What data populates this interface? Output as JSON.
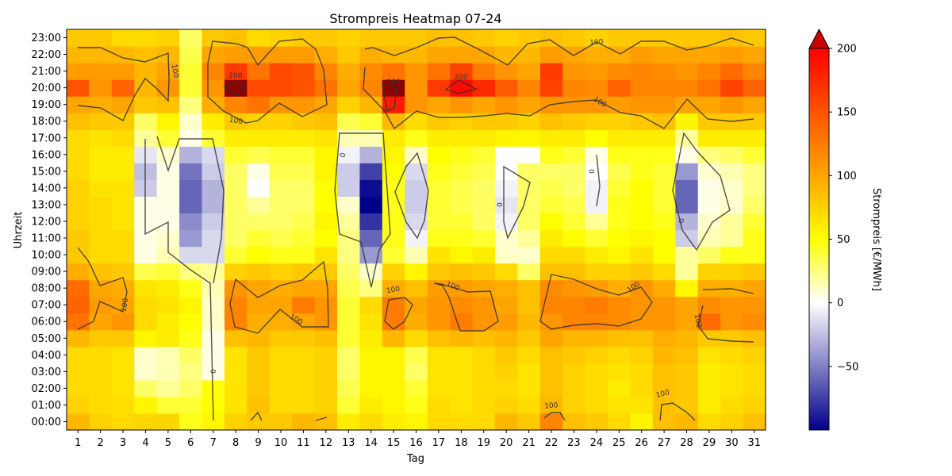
{
  "chart_data": {
    "type": "heatmap",
    "title": "Strompreis Heatmap 07-24",
    "xlabel": "Tag",
    "ylabel": "Uhrzeit",
    "x": [
      1,
      2,
      3,
      4,
      5,
      6,
      7,
      8,
      9,
      10,
      11,
      12,
      13,
      14,
      15,
      16,
      17,
      18,
      19,
      20,
      21,
      22,
      23,
      24,
      25,
      26,
      27,
      28,
      29,
      30,
      31
    ],
    "y": [
      "00:00",
      "01:00",
      "02:00",
      "03:00",
      "04:00",
      "05:00",
      "06:00",
      "07:00",
      "08:00",
      "09:00",
      "10:00",
      "11:00",
      "12:00",
      "13:00",
      "14:00",
      "15:00",
      "16:00",
      "17:00",
      "18:00",
      "19:00",
      "20:00",
      "21:00",
      "22:00",
      "23:00"
    ],
    "values": [
      [
        90,
        75,
        70,
        72,
        72,
        45,
        55,
        75,
        80,
        80,
        90,
        85,
        60,
        70,
        60,
        55,
        70,
        70,
        70,
        90,
        80,
        120,
        85,
        80,
        70,
        55,
        85,
        90,
        70,
        75,
        85
      ],
      [
        75,
        70,
        68,
        55,
        40,
        40,
        50,
        65,
        85,
        70,
        70,
        75,
        40,
        60,
        55,
        45,
        70,
        65,
        70,
        75,
        70,
        90,
        75,
        70,
        65,
        65,
        85,
        80,
        60,
        70,
        75
      ],
      [
        70,
        70,
        65,
        30,
        20,
        30,
        50,
        65,
        80,
        70,
        70,
        75,
        35,
        55,
        55,
        40,
        65,
        65,
        70,
        70,
        65,
        85,
        75,
        70,
        60,
        70,
        85,
        80,
        60,
        65,
        70
      ],
      [
        70,
        70,
        65,
        10,
        15,
        25,
        5,
        65,
        80,
        70,
        70,
        75,
        30,
        55,
        55,
        30,
        65,
        65,
        70,
        75,
        65,
        85,
        75,
        70,
        65,
        70,
        85,
        80,
        60,
        65,
        70
      ],
      [
        70,
        70,
        65,
        10,
        15,
        30,
        5,
        65,
        80,
        70,
        70,
        75,
        30,
        55,
        55,
        35,
        65,
        65,
        70,
        80,
        70,
        85,
        80,
        75,
        70,
        75,
        90,
        85,
        65,
        70,
        75
      ],
      [
        90,
        80,
        80,
        55,
        60,
        45,
        5,
        85,
        90,
        80,
        80,
        85,
        40,
        60,
        90,
        70,
        85,
        90,
        85,
        90,
        80,
        100,
        90,
        90,
        85,
        85,
        95,
        90,
        80,
        80,
        85
      ],
      [
        130,
        100,
        110,
        70,
        60,
        50,
        10,
        120,
        95,
        95,
        100,
        110,
        40,
        65,
        125,
        95,
        110,
        125,
        110,
        105,
        90,
        110,
        120,
        120,
        115,
        110,
        110,
        100,
        135,
        110,
        115
      ],
      [
        140,
        105,
        100,
        70,
        65,
        55,
        10,
        120,
        100,
        100,
        125,
        110,
        40,
        70,
        125,
        100,
        110,
        115,
        110,
        100,
        85,
        120,
        120,
        125,
        115,
        110,
        110,
        100,
        115,
        110,
        110
      ],
      [
        135,
        100,
        95,
        65,
        60,
        45,
        15,
        110,
        100,
        95,
        100,
        100,
        35,
        25,
        95,
        85,
        105,
        105,
        100,
        95,
        85,
        115,
        110,
        105,
        95,
        110,
        95,
        55,
        95,
        95,
        100
      ],
      [
        95,
        85,
        80,
        35,
        40,
        25,
        20,
        75,
        80,
        75,
        80,
        80,
        30,
        10,
        75,
        55,
        80,
        85,
        80,
        70,
        30,
        85,
        85,
        75,
        75,
        80,
        70,
        20,
        75,
        75,
        80
      ],
      [
        80,
        70,
        70,
        5,
        15,
        -15,
        -15,
        40,
        50,
        45,
        45,
        65,
        25,
        -40,
        40,
        15,
        65,
        55,
        60,
        10,
        10,
        70,
        70,
        60,
        55,
        65,
        50,
        20,
        30,
        45,
        45
      ],
      [
        80,
        70,
        70,
        5,
        10,
        -40,
        -15,
        30,
        40,
        35,
        40,
        50,
        25,
        -60,
        45,
        -5,
        45,
        45,
        40,
        10,
        20,
        60,
        50,
        40,
        50,
        55,
        50,
        -20,
        15,
        20,
        45
      ],
      [
        75,
        70,
        65,
        5,
        5,
        -45,
        -20,
        30,
        30,
        30,
        35,
        55,
        20,
        -80,
        45,
        -15,
        40,
        40,
        30,
        -5,
        30,
        50,
        40,
        20,
        45,
        50,
        45,
        -30,
        10,
        20,
        40
      ],
      [
        75,
        70,
        65,
        5,
        5,
        -60,
        -30,
        30,
        20,
        30,
        30,
        50,
        10,
        -100,
        45,
        -20,
        40,
        35,
        30,
        -10,
        30,
        40,
        35,
        -5,
        45,
        50,
        40,
        -60,
        5,
        10,
        30
      ],
      [
        75,
        65,
        65,
        -20,
        5,
        -60,
        -30,
        30,
        0,
        30,
        30,
        50,
        -20,
        -95,
        45,
        -20,
        40,
        35,
        30,
        -5,
        30,
        35,
        30,
        -5,
        40,
        50,
        40,
        -60,
        5,
        10,
        25
      ],
      [
        70,
        60,
        60,
        -25,
        5,
        -55,
        -20,
        30,
        5,
        35,
        35,
        55,
        -20,
        -75,
        50,
        -15,
        45,
        40,
        35,
        0,
        30,
        30,
        30,
        0,
        35,
        45,
        40,
        -40,
        10,
        15,
        25
      ],
      [
        70,
        60,
        60,
        -10,
        10,
        -30,
        -15,
        40,
        35,
        40,
        40,
        55,
        -5,
        -30,
        55,
        10,
        50,
        45,
        40,
        0,
        0,
        45,
        40,
        5,
        45,
        45,
        45,
        5,
        25,
        30,
        40
      ],
      [
        70,
        65,
        70,
        20,
        40,
        5,
        40,
        60,
        60,
        60,
        60,
        65,
        15,
        15,
        60,
        45,
        60,
        60,
        60,
        55,
        55,
        60,
        60,
        50,
        60,
        60,
        60,
        20,
        60,
        60,
        60
      ],
      [
        85,
        80,
        80,
        30,
        55,
        10,
        60,
        80,
        75,
        75,
        80,
        85,
        35,
        40,
        90,
        70,
        80,
        75,
        80,
        80,
        75,
        85,
        80,
        75,
        75,
        80,
        85,
        55,
        80,
        80,
        80
      ],
      [
        100,
        95,
        100,
        80,
        85,
        25,
        95,
        120,
        130,
        110,
        110,
        100,
        75,
        90,
        185,
        110,
        100,
        110,
        100,
        110,
        100,
        110,
        110,
        110,
        105,
        110,
        110,
        100,
        100,
        110,
        100
      ],
      [
        150,
        110,
        140,
        90,
        110,
        40,
        110,
        205,
        155,
        155,
        150,
        130,
        100,
        120,
        210,
        110,
        165,
        195,
        175,
        145,
        120,
        160,
        120,
        115,
        140,
        120,
        120,
        120,
        130,
        160,
        140
      ],
      [
        105,
        105,
        105,
        90,
        100,
        40,
        120,
        165,
        130,
        155,
        150,
        120,
        95,
        115,
        130,
        110,
        130,
        160,
        125,
        110,
        100,
        165,
        110,
        105,
        115,
        120,
        115,
        110,
        120,
        135,
        120
      ],
      [
        90,
        90,
        90,
        85,
        90,
        35,
        100,
        105,
        105,
        105,
        105,
        95,
        80,
        95,
        90,
        90,
        100,
        100,
        100,
        90,
        90,
        105,
        100,
        95,
        95,
        105,
        100,
        100,
        100,
        105,
        100
      ],
      [
        80,
        80,
        70,
        70,
        75,
        30,
        80,
        85,
        70,
        75,
        80,
        80,
        75,
        80,
        80,
        80,
        85,
        85,
        80,
        75,
        80,
        85,
        80,
        75,
        80,
        80,
        80,
        80,
        80,
        85,
        80
      ]
    ],
    "colorbar": {
      "label": "Strompreis [€/MWh]",
      "ticks": [
        "200",
        "150",
        "100",
        "50",
        "0",
        "−50"
      ],
      "vmin": -100,
      "vmax": 200
    },
    "contour_labels": [
      "200",
      "200",
      "200",
      "100",
      "100",
      "100",
      "100",
      "100",
      "100",
      "100",
      "100",
      "100",
      "100",
      "100",
      "100",
      "0",
      "0",
      "0",
      "0",
      "0"
    ]
  }
}
